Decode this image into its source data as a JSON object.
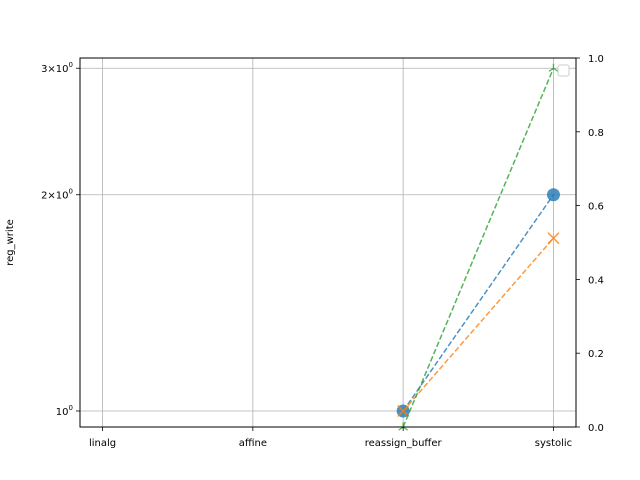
{
  "chart_data": {
    "type": "line",
    "categories": [
      "linalg",
      "affine",
      "reassign_buffer",
      "systolic"
    ],
    "ylabel": "reg_write",
    "yscale": "log",
    "ylim": [
      0.95,
      3.1
    ],
    "y_ticks": [
      {
        "value": 1,
        "base": "10",
        "exp": "0",
        "coef": ""
      },
      {
        "value": 2,
        "base": "10",
        "exp": "0",
        "coef": "2×"
      },
      {
        "value": 3,
        "base": "10",
        "exp": "0",
        "coef": "3×"
      }
    ],
    "y2lim": [
      0,
      1
    ],
    "y2_ticks": [
      "0.0",
      "0.2",
      "0.4",
      "0.6",
      "0.8",
      "1.0"
    ],
    "grid": true,
    "legend": "top-right (empty)",
    "series": [
      {
        "color": "#1f77b4",
        "marker": "circle",
        "linestyle": "dashed",
        "points": [
          {
            "x": "reassign_buffer",
            "y": 1
          },
          {
            "x": "systolic",
            "y": 2
          }
        ]
      },
      {
        "color": "#ff7f0e",
        "marker": "x",
        "linestyle": "dashed",
        "points": [
          {
            "x": "reassign_buffer",
            "y": 1
          },
          {
            "x": "systolic",
            "y": 1.74
          }
        ]
      },
      {
        "color": "#2ca02c",
        "marker": "tri_down",
        "linestyle": "dashed",
        "points": [
          {
            "x": "reassign_buffer",
            "y": 0.95
          },
          {
            "x": "systolic",
            "y": 3
          }
        ]
      }
    ]
  }
}
